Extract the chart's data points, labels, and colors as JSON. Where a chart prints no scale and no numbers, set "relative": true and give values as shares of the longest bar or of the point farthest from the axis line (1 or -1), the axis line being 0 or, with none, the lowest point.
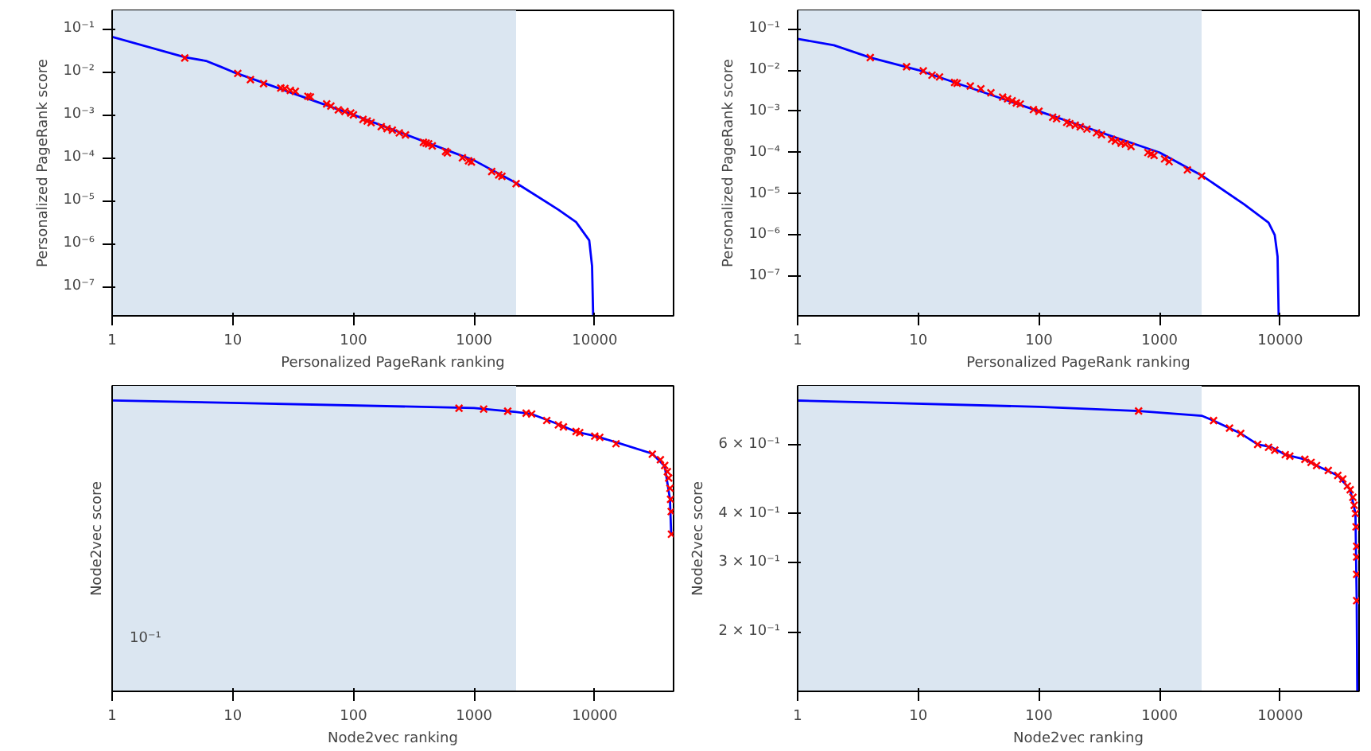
{
  "chart_data": [
    {
      "type": "line",
      "xlabel": "Personalized PageRank ranking",
      "ylabel": "Personalized PageRank score",
      "log": "xy",
      "grid": false,
      "xlim": [
        1,
        45000
      ],
      "ylim": [
        2.1e-08,
        0.27
      ],
      "xticks": [
        1,
        10,
        100,
        1000,
        10000
      ],
      "yticks": [
        {
          "value": 1e-07,
          "label": "10⁻⁷"
        },
        {
          "value": 1e-06,
          "label": "10⁻⁶"
        },
        {
          "value": 1e-05,
          "label": "10⁻⁵"
        },
        {
          "value": 0.0001,
          "label": "10⁻⁴"
        },
        {
          "value": 0.001,
          "label": "10⁻³"
        },
        {
          "value": 0.01,
          "label": "10⁻²"
        },
        {
          "value": 0.1,
          "label": "10⁻¹"
        }
      ],
      "bands": [
        {
          "axis": "x",
          "from": 1,
          "to": 2230,
          "color": "#dbe6f1"
        }
      ],
      "series": [
        {
          "color": "#0000ff",
          "x": [
            1,
            4,
            6,
            8,
            10,
            100,
            1000,
            2230,
            5000,
            7000,
            9000,
            9500,
            9700
          ],
          "values": [
            0.065,
            0.022,
            0.018,
            0.013,
            0.01,
            0.001,
            8.7e-05,
            2.6e-05,
            6.2e-06,
            3.2e-06,
            1.2e-06,
            3e-07,
            2.1e-08
          ]
        },
        {
          "type": "scatter",
          "marker": "cross",
          "color": "#ff0000",
          "x": [
            4,
            11,
            14,
            18,
            25,
            27,
            30,
            33,
            42,
            44,
            60,
            65,
            75,
            85,
            95,
            100,
            120,
            130,
            140,
            170,
            190,
            210,
            240,
            270,
            380,
            400,
            420,
            450,
            580,
            600,
            800,
            900,
            950,
            1400,
            1600,
            1700,
            2230
          ],
          "values": [
            0.021,
            0.0092,
            0.0066,
            0.0053,
            0.0042,
            0.0041,
            0.0037,
            0.0035,
            0.0027,
            0.0026,
            0.0018,
            0.0016,
            0.0013,
            0.0012,
            0.0011,
            0.001,
            0.00078,
            0.00072,
            0.00066,
            0.00053,
            0.00048,
            0.00044,
            0.00038,
            0.00034,
            0.00023,
            0.00022,
            0.00021,
            0.00019,
            0.00014,
            0.00013,
            0.0001,
            8.5e-05,
            8e-05,
            4.8e-05,
            4e-05,
            3.7e-05,
            2.5e-05
          ]
        }
      ]
    },
    {
      "type": "line",
      "xlabel": "Personalized PageRank ranking",
      "ylabel": "Personalized PageRank score",
      "log": "xy",
      "grid": false,
      "xlim": [
        1,
        45000
      ],
      "ylim": [
        1.1e-08,
        0.28
      ],
      "xticks": [
        1,
        10,
        100,
        1000,
        10000
      ],
      "yticks": [
        {
          "value": 1e-07,
          "label": "10⁻⁷"
        },
        {
          "value": 1e-06,
          "label": "10⁻⁶"
        },
        {
          "value": 1e-05,
          "label": "10⁻⁵"
        },
        {
          "value": 0.0001,
          "label": "10⁻⁴"
        },
        {
          "value": 0.001,
          "label": "10⁻³"
        },
        {
          "value": 0.01,
          "label": "10⁻²"
        },
        {
          "value": 0.1,
          "label": "10⁻¹"
        }
      ],
      "bands": [
        {
          "axis": "x",
          "from": 1,
          "to": 2230,
          "color": "#dbe6f1"
        }
      ],
      "series": [
        {
          "color": "#0000ff",
          "x": [
            1,
            2,
            4,
            10,
            100,
            1000,
            2230,
            5000,
            8000,
            9000,
            9500,
            9700
          ],
          "values": [
            0.057,
            0.04,
            0.02,
            0.01,
            0.001,
            0.0001,
            2.8e-05,
            5.6e-06,
            2e-06,
            1e-06,
            3e-07,
            1.1e-08
          ]
        },
        {
          "type": "scatter",
          "marker": "cross",
          "color": "#ff0000",
          "x": [
            4,
            8,
            11,
            13,
            15,
            20,
            21,
            27,
            33,
            40,
            50,
            55,
            60,
            65,
            70,
            90,
            100,
            130,
            140,
            170,
            180,
            200,
            220,
            250,
            300,
            330,
            400,
            430,
            480,
            520,
            580,
            800,
            850,
            900,
            1100,
            1200,
            1700,
            2230
          ],
          "values": [
            0.02,
            0.012,
            0.0095,
            0.0075,
            0.0068,
            0.005,
            0.0048,
            0.0041,
            0.0035,
            0.0028,
            0.0022,
            0.002,
            0.0018,
            0.0016,
            0.0015,
            0.0011,
            0.001,
            0.00072,
            0.00066,
            0.00054,
            0.0005,
            0.00046,
            0.00042,
            0.00037,
            0.0003,
            0.00027,
            0.00021,
            0.00019,
            0.00017,
            0.00016,
            0.00014,
            0.0001,
            9.2e-05,
            8.5e-05,
            7e-05,
            6e-05,
            3.8e-05,
            2.7e-05
          ]
        }
      ]
    },
    {
      "type": "line",
      "xlabel": "Node2vec ranking",
      "ylabel": "Node2vec score",
      "log": "x",
      "grid": false,
      "xlim": [
        1,
        45000
      ],
      "relative": true,
      "annotations": [
        "10⁻¹"
      ],
      "xticks": [
        1,
        10,
        100,
        1000,
        10000
      ],
      "bands": [
        {
          "axis": "x",
          "from": 1,
          "to": 2230,
          "color": "#dbe6f1"
        }
      ],
      "series": [
        {
          "color": "#0000ff",
          "x": [
            1,
            1000,
            2230,
            3000,
            5000,
            7000,
            10000,
            15000,
            30000,
            38000,
            42000,
            43000
          ],
          "values": [
            1,
            0.974,
            0.96,
            0.953,
            0.918,
            0.892,
            0.878,
            0.856,
            0.817,
            0.774,
            0.661,
            0.539
          ]
        },
        {
          "type": "scatter",
          "marker": "cross",
          "color": "#ff0000",
          "x": [
            750,
            1200,
            1900,
            2700,
            3000,
            4000,
            5000,
            5500,
            7000,
            7500,
            10000,
            11000,
            15000,
            30000,
            35000,
            38000,
            40000,
            41000,
            42000,
            42500,
            43000,
            43200
          ],
          "values": [
            0.973,
            0.97,
            0.963,
            0.956,
            0.953,
            0.931,
            0.916,
            0.909,
            0.893,
            0.889,
            0.877,
            0.873,
            0.851,
            0.815,
            0.796,
            0.776,
            0.755,
            0.733,
            0.698,
            0.66,
            0.618,
            0.54
          ]
        }
      ]
    },
    {
      "type": "line",
      "xlabel": "Node2vec ranking",
      "ylabel": "Node2vec score",
      "log": "xy",
      "grid": false,
      "xlim": [
        1,
        45000
      ],
      "ylim": [
        0.141,
        0.846
      ],
      "xticks": [
        1,
        10,
        100,
        1000,
        10000
      ],
      "yticks": [
        {
          "value": 0.2,
          "label": "2 × 10⁻¹"
        },
        {
          "value": 0.3,
          "label": "3 × 10⁻¹"
        },
        {
          "value": 0.4,
          "label": "4 × 10⁻¹"
        },
        {
          "value": 0.6,
          "label": "6 × 10⁻¹"
        }
      ],
      "bands": [
        {
          "axis": "x",
          "from": 1,
          "to": 2230,
          "color": "#dbe6f1"
        }
      ],
      "series": [
        {
          "color": "#0000ff",
          "x": [
            1,
            100,
            670,
            2230,
            2800,
            3800,
            4700,
            6500,
            8500,
            11000,
            16000,
            20000,
            30000,
            38000,
            42000,
            43000,
            43500
          ],
          "values": [
            0.776,
            0.748,
            0.73,
            0.71,
            0.69,
            0.66,
            0.64,
            0.6,
            0.59,
            0.565,
            0.55,
            0.53,
            0.5,
            0.46,
            0.4,
            0.24,
            0.141
          ]
        },
        {
          "type": "scatter",
          "marker": "cross",
          "color": "#ff0000",
          "x": [
            670,
            2800,
            3800,
            4700,
            6500,
            8000,
            9000,
            11000,
            12000,
            16000,
            18000,
            20000,
            25000,
            30000,
            33000,
            36000,
            38000,
            40000,
            41000,
            42000,
            42500,
            43000,
            43000,
            43000,
            43000
          ],
          "values": [
            0.73,
            0.69,
            0.66,
            0.64,
            0.6,
            0.59,
            0.58,
            0.565,
            0.56,
            0.55,
            0.54,
            0.53,
            0.515,
            0.5,
            0.49,
            0.47,
            0.46,
            0.44,
            0.42,
            0.4,
            0.37,
            0.33,
            0.31,
            0.28,
            0.24
          ]
        }
      ]
    }
  ]
}
